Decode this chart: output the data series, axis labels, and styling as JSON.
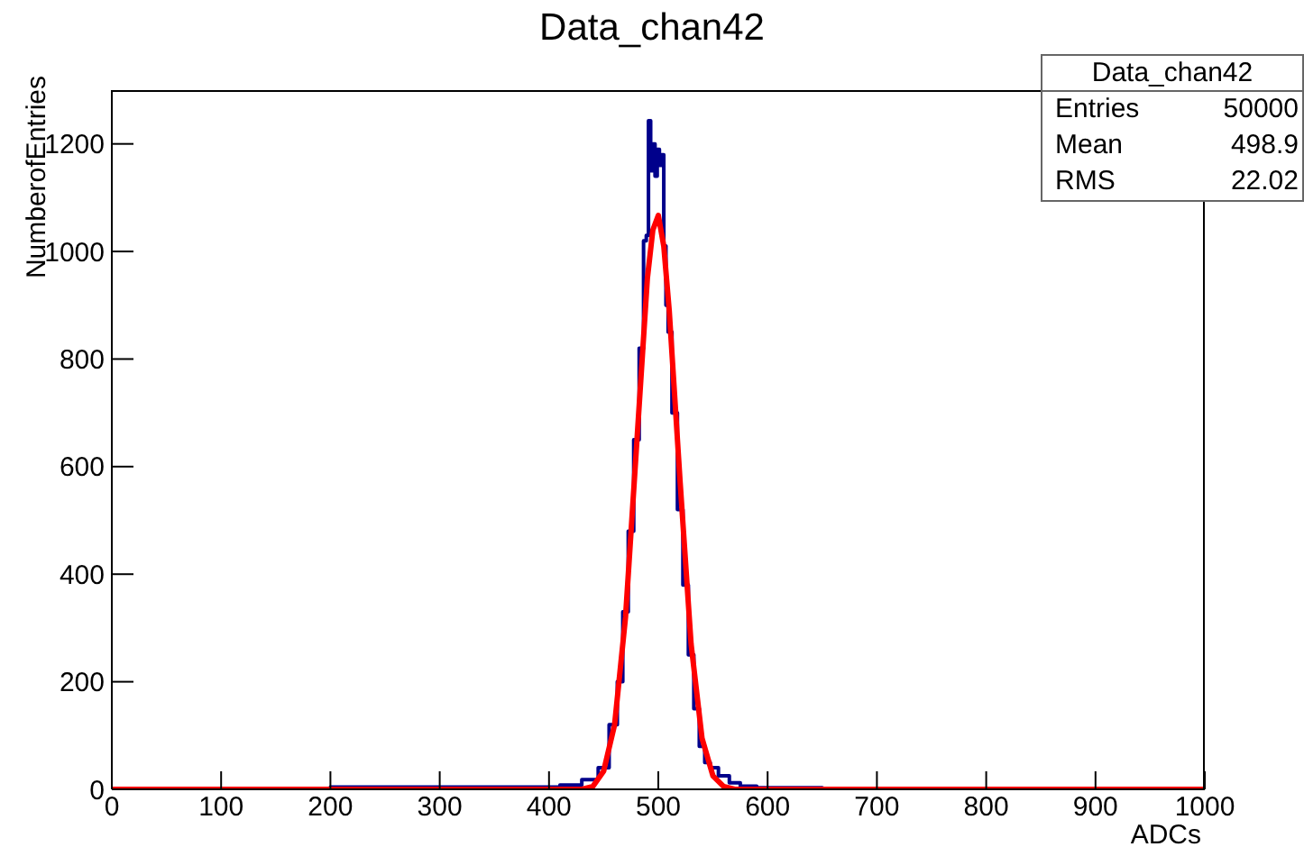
{
  "chart_data": {
    "type": "step",
    "title": "Data_chan42",
    "xlabel": "ADCs",
    "ylabel": "NumberofEntries",
    "series": [
      {
        "color": "#00008b",
        "x": [
          0,
          400,
          420,
          440,
          450,
          460,
          465,
          470,
          475,
          480,
          485,
          488,
          490,
          492,
          494,
          496,
          498,
          500,
          502,
          504,
          506,
          508,
          510,
          515,
          520,
          525,
          530,
          535,
          540,
          545,
          550,
          560,
          570,
          580,
          600,
          700,
          1000
        ],
        "values": [
          0,
          4,
          8,
          18,
          40,
          120,
          200,
          330,
          480,
          650,
          820,
          1020,
          1030,
          1243,
          1150,
          1200,
          1140,
          1190,
          1160,
          1180,
          1010,
          900,
          850,
          700,
          520,
          380,
          250,
          150,
          80,
          50,
          40,
          25,
          12,
          6,
          3,
          0,
          0
        ]
      },
      {
        "type": "line",
        "color": "#ff0000",
        "x": [
          0,
          430,
          440,
          450,
          460,
          470,
          480,
          490,
          495,
          500,
          505,
          510,
          520,
          530,
          540,
          550,
          560,
          570,
          1000
        ],
        "values": [
          0,
          0,
          5,
          34,
          120,
          320,
          635,
          950,
          1040,
          1067,
          1010,
          890,
          570,
          270,
          95,
          25,
          5,
          0,
          0
        ]
      }
    ],
    "xlim": [
      0,
      1000
    ],
    "xticks": [
      0,
      100,
      200,
      300,
      400,
      500,
      600,
      700,
      800,
      900,
      1000
    ],
    "ylim": [
      0,
      1300
    ],
    "yticks": [
      0,
      200,
      400,
      600,
      800,
      1000,
      1200
    ],
    "annotations": [
      "Data_chan42",
      "Entries",
      "50000",
      "Mean",
      "498.9",
      "RMS",
      "22.02"
    ],
    "grid": false,
    "marker": "none"
  }
}
